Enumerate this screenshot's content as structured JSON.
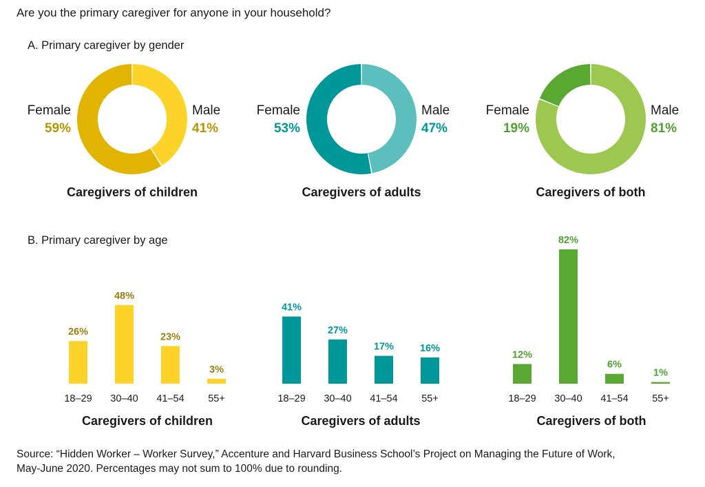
{
  "question": "Are you the primary caregiver for anyone in your household?",
  "section_a_title": "A. Primary caregiver by gender",
  "section_b_title": "B. Primary caregiver by age",
  "source_line1": "Source: “Hidden Worker – Worker Survey,” Accenture and Harvard Business School’s Project on Managing the Future of Work,",
  "source_line2": "May-June 2020. Percentages may not sum to 100% due to rounding.",
  "colors": {
    "children_dark": "#e0b400",
    "children_light": "#fdd32a",
    "children_text": "#b89500",
    "adults_dark": "#00979a",
    "adults_light": "#5cbfbd",
    "adults_text": "#00979a",
    "both_dark": "#58a832",
    "both_light": "#9dc84f",
    "both_text": "#4fa02f"
  },
  "chart_data": [
    {
      "type": "pie",
      "title": "Caregivers of children",
      "labels": [
        "Female",
        "Male"
      ],
      "values": [
        59,
        41
      ],
      "value_labels": [
        "59%",
        "41%"
      ],
      "colors": [
        "#e0b400",
        "#fdd32a"
      ],
      "label_color": "#b89500"
    },
    {
      "type": "pie",
      "title": "Caregivers of adults",
      "labels": [
        "Female",
        "Male"
      ],
      "values": [
        53,
        47
      ],
      "value_labels": [
        "53%",
        "47%"
      ],
      "colors": [
        "#00979a",
        "#5cbfbd"
      ],
      "label_color": "#00979a"
    },
    {
      "type": "pie",
      "title": "Caregivers of both",
      "labels": [
        "Female",
        "Male"
      ],
      "values": [
        19,
        81
      ],
      "value_labels": [
        "19%",
        "81%"
      ],
      "colors": [
        "#58a832",
        "#9dc84f"
      ],
      "label_color": "#4fa02f"
    },
    {
      "type": "bar",
      "title": "Caregivers of children",
      "categories": [
        "18–29",
        "30–40",
        "41–54",
        "55+"
      ],
      "values": [
        26,
        48,
        23,
        3
      ],
      "value_labels": [
        "26%",
        "48%",
        "23%",
        "3%"
      ],
      "color": "#fdd32a",
      "label_color": "#9a7e10",
      "ylim": [
        0,
        82
      ]
    },
    {
      "type": "bar",
      "title": "Caregivers of adults",
      "categories": [
        "18–29",
        "30–40",
        "41–54",
        "55+"
      ],
      "values": [
        41,
        27,
        17,
        16
      ],
      "value_labels": [
        "41%",
        "27%",
        "17%",
        "16%"
      ],
      "color": "#00979a",
      "label_color": "#00979a",
      "ylim": [
        0,
        82
      ]
    },
    {
      "type": "bar",
      "title": "Caregivers of both",
      "categories": [
        "18–29",
        "30–40",
        "41–54",
        "55+"
      ],
      "values": [
        12,
        82,
        6,
        1
      ],
      "value_labels": [
        "12%",
        "82%",
        "6%",
        "1%"
      ],
      "color": "#58a832",
      "label_color": "#4fa02f",
      "ylim": [
        0,
        82
      ]
    }
  ]
}
